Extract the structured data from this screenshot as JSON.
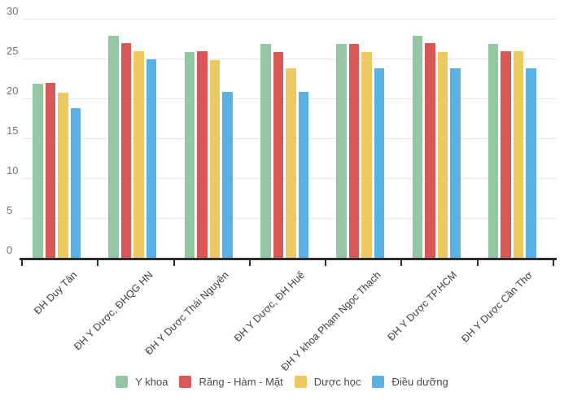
{
  "chart_data": {
    "type": "bar",
    "title": "",
    "xlabel": "",
    "ylabel": "",
    "categories": [
      "ĐH Duy Tân",
      "ĐH Y Dược, ĐHQG HN",
      "ĐH Y Dược Thái Nguyên",
      "ĐH Y Dược, ĐH Huế",
      "ĐH Y khoa Phạm Ngọc Thạch",
      "ĐH Y Dược TP.HCM",
      "ĐH Y Dược Cần Thơ"
    ],
    "series": [
      {
        "name": "Y khoa",
        "color": "#94c6a3",
        "values": [
          21.8,
          27.9,
          25.8,
          26.8,
          26.8,
          27.9,
          26.8
        ]
      },
      {
        "name": "Răng - Hàm - Mặt",
        "color": "#d95757",
        "values": [
          21.9,
          26.9,
          25.9,
          25.8,
          26.8,
          26.9,
          25.9
        ]
      },
      {
        "name": "Dược học",
        "color": "#edc962",
        "values": [
          20.7,
          25.9,
          24.8,
          23.8,
          25.8,
          25.8,
          25.9
        ]
      },
      {
        "name": "Điều dưỡng",
        "color": "#59b2e3",
        "values": [
          18.8,
          24.9,
          20.8,
          20.8,
          23.8,
          23.8,
          23.8
        ]
      }
    ],
    "ylim": [
      0,
      30
    ],
    "yticks": [
      0,
      5,
      10,
      15,
      20,
      25,
      30
    ],
    "grid": "horizontal",
    "legend_position": "bottom"
  },
  "colors": {
    "background": "#ffffff",
    "grid_line": "#e4e4e4",
    "axis_line": "#2d2d2d",
    "y_label": "#757575",
    "x_label": "#3d3d3d",
    "legend_text": "#4a4a4a"
  }
}
